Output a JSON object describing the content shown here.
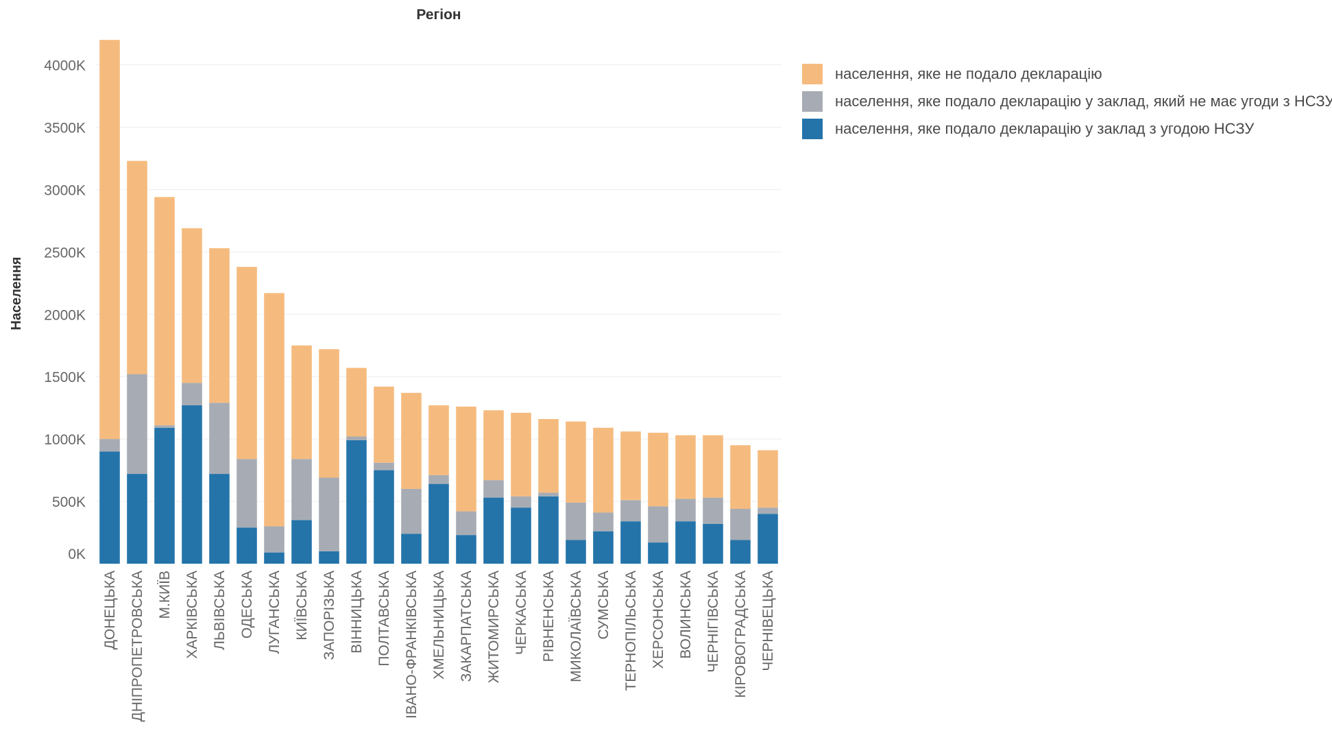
{
  "chart_data": {
    "type": "bar",
    "stacked": true,
    "title": "Регіон",
    "xlabel": "",
    "ylabel": "Населення",
    "ylim": [
      0,
      4300000
    ],
    "yticks": [
      0,
      500000,
      1000000,
      1500000,
      2000000,
      2500000,
      3000000,
      3500000,
      4000000
    ],
    "ytick_labels": [
      "0K",
      "500K",
      "1000K",
      "1500K",
      "2000K",
      "2500K",
      "3000K",
      "3500K",
      "4000K"
    ],
    "grid": true,
    "legend_position": "top-right",
    "categories": [
      "ДОНЕЦЬКА",
      "ДНІПРОПЕТРОВСЬКА",
      "М.КИЇВ",
      "ХАРКІВСЬКА",
      "ЛЬВІВСЬКА",
      "ОДЕСЬКА",
      "ЛУГАНСЬКА",
      "КИЇВСЬКА",
      "ЗАПОРІЗЬКА",
      "ВІННИЦЬКА",
      "ПОЛТАВСЬКА",
      "ІВАНО-ФРАНКІВСЬКА",
      "ХМЕЛЬНИЦЬКА",
      "ЗАКАРПАТСЬКА",
      "ЖИТОМИРСЬКА",
      "ЧЕРКАСЬКА",
      "РІВНЕНСЬКА",
      "МИКОЛАЇВСЬКА",
      "СУМСЬКА",
      "ТЕРНОПІЛЬСЬКА",
      "ХЕРСОНСЬКА",
      "ВОЛИНСЬКА",
      "ЧЕРНІГІВСЬКА",
      "КІРОВОГРАДСЬКА",
      "ЧЕРНІВЕЦЬКА"
    ],
    "series": [
      {
        "name": "населення, яке подало декларацію у заклад з угодою НСЗУ",
        "color": "#2474aa",
        "values": [
          900000,
          720000,
          1090000,
          1270000,
          720000,
          290000,
          90000,
          350000,
          100000,
          990000,
          750000,
          240000,
          640000,
          230000,
          530000,
          450000,
          540000,
          190000,
          260000,
          340000,
          170000,
          340000,
          320000,
          190000,
          400000
        ]
      },
      {
        "name": "населення, яке подало декларацію у заклад, який не має угоди з НСЗУ",
        "color": "#a7acb4",
        "values": [
          100000,
          800000,
          20000,
          180000,
          570000,
          550000,
          210000,
          490000,
          590000,
          30000,
          60000,
          360000,
          70000,
          190000,
          140000,
          90000,
          30000,
          300000,
          150000,
          170000,
          290000,
          180000,
          210000,
          250000,
          50000
        ]
      },
      {
        "name": "населення, яке не подало декларацію",
        "color": "#f5bb7e",
        "values": [
          3200000,
          1710000,
          1830000,
          1240000,
          1240000,
          1540000,
          1870000,
          910000,
          1030000,
          550000,
          610000,
          770000,
          560000,
          840000,
          560000,
          670000,
          590000,
          650000,
          680000,
          550000,
          590000,
          510000,
          500000,
          510000,
          460000
        ]
      }
    ]
  },
  "legend": {
    "items": [
      {
        "label": "населення, яке не подало декларацію",
        "color": "#f5bb7e"
      },
      {
        "label": "населення, яке подало декларацію у заклад, який не має угоди з НСЗУ",
        "color": "#a7acb4"
      },
      {
        "label": "населення, яке подало декларацію у заклад з угодою НСЗУ",
        "color": "#2474aa"
      }
    ]
  }
}
